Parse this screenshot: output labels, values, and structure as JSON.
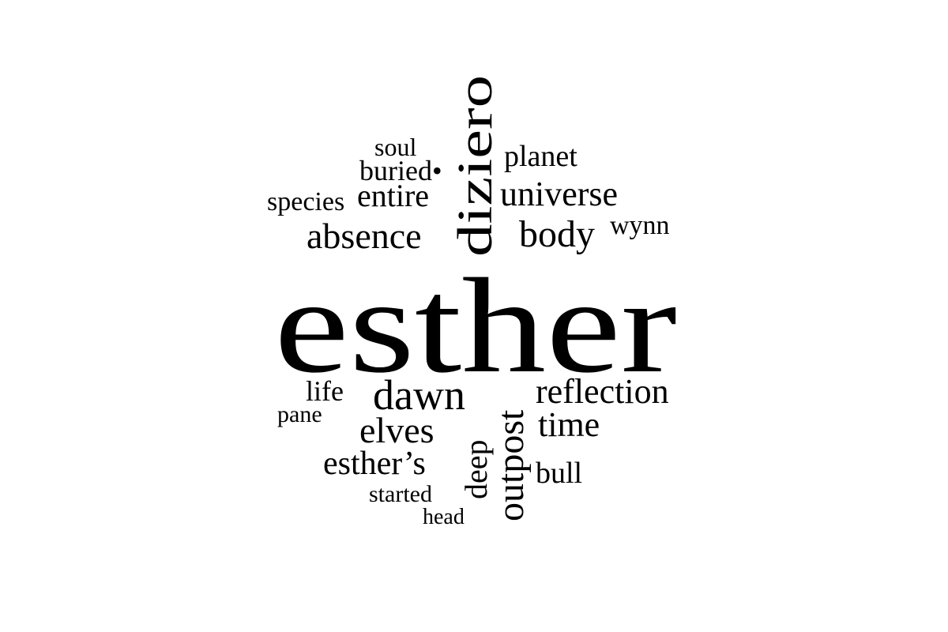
{
  "word_cloud": {
    "text_color": "#000000",
    "background_color": "#ffffff",
    "words": [
      {
        "id": "esther",
        "text": "esther"
      },
      {
        "id": "diziero",
        "text": "diziero"
      },
      {
        "id": "soul",
        "text": "soul"
      },
      {
        "id": "planet",
        "text": "planet"
      },
      {
        "id": "buried",
        "text": "buried•"
      },
      {
        "id": "species",
        "text": "species"
      },
      {
        "id": "entire",
        "text": "entire"
      },
      {
        "id": "universe",
        "text": "universe"
      },
      {
        "id": "absence",
        "text": "absence"
      },
      {
        "id": "body",
        "text": "body"
      },
      {
        "id": "wynn",
        "text": "wynn"
      },
      {
        "id": "life",
        "text": "life"
      },
      {
        "id": "dawn",
        "text": "dawn"
      },
      {
        "id": "outpost",
        "text": "outpost"
      },
      {
        "id": "reflection",
        "text": "reflection"
      },
      {
        "id": "pane",
        "text": "pane"
      },
      {
        "id": "elves",
        "text": "elves"
      },
      {
        "id": "time",
        "text": "time"
      },
      {
        "id": "deep",
        "text": "deep"
      },
      {
        "id": "esthers",
        "text": "esther’s"
      },
      {
        "id": "bull",
        "text": "bull"
      },
      {
        "id": "started",
        "text": "started"
      },
      {
        "id": "head",
        "text": "head"
      }
    ]
  }
}
